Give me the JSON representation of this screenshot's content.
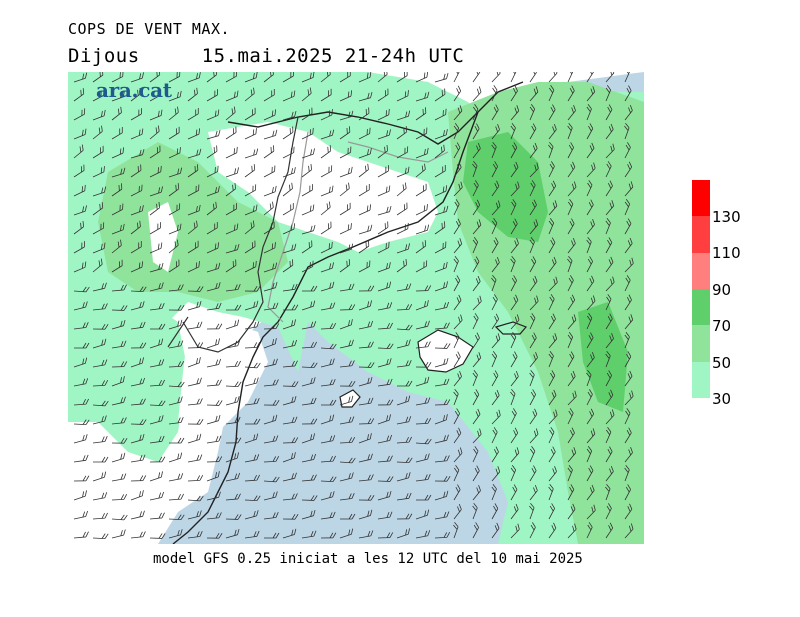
{
  "header": {
    "title": "COPS DE VENT MAX.",
    "day": "Dijous",
    "datetime": "15.mai.2025 21-24h UTC"
  },
  "logo": {
    "text": "ara.cat",
    "color": "#1e5a8c"
  },
  "footer": {
    "model_text": "model GFS 0.25 iniciat a les 12 UTC del 10 mai 2025"
  },
  "legend": {
    "labels": [
      "130",
      "110",
      "90",
      "70",
      "50",
      "30"
    ],
    "bins": [
      {
        "from": 30,
        "to": 50,
        "color": "#a0f5c4"
      },
      {
        "from": 50,
        "to": 70,
        "color": "#8fe39a"
      },
      {
        "from": 70,
        "to": 90,
        "color": "#5ecf6a"
      },
      {
        "from": 90,
        "to": 110,
        "color": "#ff7f7f"
      },
      {
        "from": 110,
        "to": 130,
        "color": "#ff3f3f"
      },
      {
        "from": 130,
        "to": 150,
        "color": "#ff0000"
      }
    ],
    "below_min_color": "#bcd6e6"
  }
}
